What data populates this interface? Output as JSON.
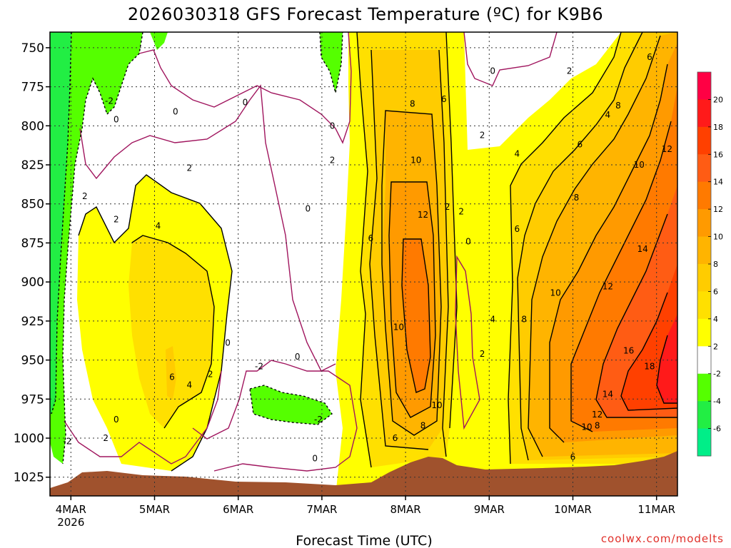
{
  "chart_data": {
    "type": "heatmap",
    "title": "2026030318 GFS Forecast Temperature (ºC) for K9B6",
    "xlabel": "Forecast Time (UTC)",
    "ylabel": "",
    "credit": "coolwx.com/modelts",
    "x_ticks": [
      {
        "label": "4MAR",
        "sublabel": "2026",
        "hour": 6
      },
      {
        "label": "5MAR",
        "sublabel": "",
        "hour": 30
      },
      {
        "label": "6MAR",
        "sublabel": "",
        "hour": 54
      },
      {
        "label": "7MAR",
        "sublabel": "",
        "hour": 78
      },
      {
        "label": "8MAR",
        "sublabel": "",
        "hour": 102
      },
      {
        "label": "9MAR",
        "sublabel": "",
        "hour": 126
      },
      {
        "label": "10MAR",
        "sublabel": "",
        "hour": 150
      },
      {
        "label": "11MAR",
        "sublabel": "",
        "hour": 174
      }
    ],
    "x_range_hours": [
      0,
      180
    ],
    "y_ticks": [
      "750",
      "775",
      "800",
      "825",
      "850",
      "875",
      "900",
      "925",
      "950",
      "975",
      "1000",
      "1025"
    ],
    "y_range_hpa": [
      740,
      1037
    ],
    "color_scale": {
      "labels": [
        "20",
        "18",
        "16",
        "14",
        "12",
        "10",
        "8",
        "6",
        "4",
        "2",
        "-2",
        "-4",
        "-6"
      ],
      "bands": [
        {
          "range": "20+",
          "color": "#ff0044"
        },
        {
          "range": "18-20",
          "color": "#ff1a1a"
        },
        {
          "range": "16-18",
          "color": "#ff4000"
        },
        {
          "range": "14-16",
          "color": "#ff5c14"
        },
        {
          "range": "12-14",
          "color": "#ff7a00"
        },
        {
          "range": "10-12",
          "color": "#ff9a00"
        },
        {
          "range": "8-10",
          "color": "#ffb400"
        },
        {
          "range": "6-8",
          "color": "#ffcc00"
        },
        {
          "range": "4-6",
          "color": "#ffe000"
        },
        {
          "range": "2-4",
          "color": "#ffff00"
        },
        {
          "range": "-2-2",
          "color": "#ffffff"
        },
        {
          "range": "-4--2",
          "color": "#55ff00"
        },
        {
          "range": "-6--4",
          "color": "#22ee44"
        },
        {
          "range": "<-6",
          "color": "#00ee88"
        }
      ]
    },
    "contour_labels": [
      {
        "text": "-2",
        "hour": 17,
        "hpa": 784
      },
      {
        "text": "0",
        "hour": 19,
        "hpa": 796
      },
      {
        "text": "0",
        "hour": 36,
        "hpa": 791
      },
      {
        "text": "0",
        "hour": 56,
        "hpa": 785
      },
      {
        "text": "0",
        "hour": 81,
        "hpa": 800
      },
      {
        "text": "2",
        "hour": 40,
        "hpa": 827
      },
      {
        "text": "2",
        "hour": 10,
        "hpa": 845
      },
      {
        "text": "2",
        "hour": 19,
        "hpa": 860
      },
      {
        "text": "4",
        "hour": 31,
        "hpa": 864
      },
      {
        "text": "0",
        "hour": 74,
        "hpa": 853
      },
      {
        "text": "2",
        "hour": 81,
        "hpa": 822
      },
      {
        "text": "8",
        "hour": 104,
        "hpa": 786
      },
      {
        "text": "6",
        "hour": 113,
        "hpa": 783
      },
      {
        "text": "10",
        "hour": 105,
        "hpa": 822
      },
      {
        "text": "12",
        "hour": 107,
        "hpa": 857
      },
      {
        "text": "6",
        "hour": 92,
        "hpa": 872
      },
      {
        "text": "10",
        "hour": 100,
        "hpa": 929
      },
      {
        "text": "2",
        "hour": 118,
        "hpa": 855
      },
      {
        "text": "0",
        "hour": 120,
        "hpa": 874
      },
      {
        "text": "4",
        "hour": 127,
        "hpa": 924
      },
      {
        "text": "8",
        "hour": 136,
        "hpa": 924
      },
      {
        "text": "2",
        "hour": 124,
        "hpa": 946
      },
      {
        "text": "0",
        "hour": 127,
        "hpa": 765
      },
      {
        "text": "2",
        "hour": 124,
        "hpa": 806
      },
      {
        "text": "2",
        "hour": 149,
        "hpa": 765
      },
      {
        "text": "4",
        "hour": 134,
        "hpa": 818
      },
      {
        "text": "6",
        "hour": 134,
        "hpa": 866
      },
      {
        "text": "6",
        "hour": 152,
        "hpa": 812
      },
      {
        "text": "8",
        "hour": 151,
        "hpa": 846
      },
      {
        "text": "10",
        "hour": 145,
        "hpa": 907
      },
      {
        "text": "12",
        "hour": 160,
        "hpa": 903
      },
      {
        "text": "10",
        "hour": 169,
        "hpa": 825
      },
      {
        "text": "12",
        "hour": 177,
        "hpa": 815
      },
      {
        "text": "14",
        "hour": 170,
        "hpa": 879
      },
      {
        "text": "16",
        "hour": 166,
        "hpa": 944
      },
      {
        "text": "18",
        "hour": 172,
        "hpa": 954
      },
      {
        "text": "14",
        "hour": 160,
        "hpa": 972
      },
      {
        "text": "12",
        "hour": 157,
        "hpa": 985
      },
      {
        "text": "10",
        "hour": 154,
        "hpa": 993
      },
      {
        "text": "8",
        "hour": 157,
        "hpa": 992
      },
      {
        "text": "6",
        "hour": 150,
        "hpa": 1012
      },
      {
        "text": "6",
        "hour": 172,
        "hpa": 756
      },
      {
        "text": "8",
        "hour": 163,
        "hpa": 787
      },
      {
        "text": "4",
        "hour": 160,
        "hpa": 793
      },
      {
        "text": "6",
        "hour": 35,
        "hpa": 961
      },
      {
        "text": "4",
        "hour": 40,
        "hpa": 966
      },
      {
        "text": "2",
        "hour": 46,
        "hpa": 959
      },
      {
        "text": "0",
        "hour": 51,
        "hpa": 939
      },
      {
        "text": "0",
        "hour": 19,
        "hpa": 988
      },
      {
        "text": "2",
        "hour": 16,
        "hpa": 1000
      },
      {
        "text": "-2",
        "hour": 5,
        "hpa": 1002
      },
      {
        "text": "-2",
        "hour": 60,
        "hpa": 954
      },
      {
        "text": "0",
        "hour": 71,
        "hpa": 948
      },
      {
        "text": "-2",
        "hour": 77,
        "hpa": 988
      },
      {
        "text": "0",
        "hour": 76,
        "hpa": 1013
      },
      {
        "text": "6",
        "hour": 99,
        "hpa": 1000
      },
      {
        "text": "8",
        "hour": 107,
        "hpa": 992
      },
      {
        "text": "10",
        "hour": 111,
        "hpa": 979
      },
      {
        "text": "2",
        "hour": 114,
        "hpa": 852
      }
    ]
  }
}
